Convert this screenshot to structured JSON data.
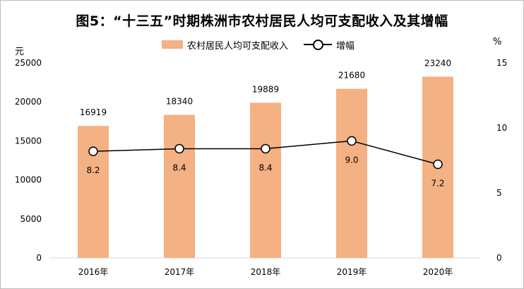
{
  "title": "图5：“十三五”时期株洲市农村居民人均可支配收入及其增幅",
  "legend": {
    "bar_label": "农村居民人均可支配收入",
    "line_label": "增幅"
  },
  "colors": {
    "bar": "#F4B183",
    "line": "#000000",
    "marker_fill": "#FFFFFF",
    "axis": "#D9D9D9"
  },
  "chart_data": {
    "type": "bar",
    "title": "图5：“十三五”时期株洲市农村居民人均可支配收入及其增幅",
    "categories": [
      "2016年",
      "2017年",
      "2018年",
      "2019年",
      "2020年"
    ],
    "series": [
      {
        "name": "农村居民人均可支配收入",
        "type": "bar",
        "axis": "left",
        "values": [
          16919,
          18340,
          19889,
          21680,
          23240
        ],
        "labels": [
          "16919",
          "18340",
          "19889",
          "21680",
          "23240"
        ]
      },
      {
        "name": "增幅",
        "type": "line",
        "axis": "right",
        "values": [
          8.2,
          8.4,
          8.4,
          9.0,
          7.2
        ],
        "labels": [
          "8.2",
          "8.4",
          "8.4",
          "9.0",
          "7.2"
        ]
      }
    ],
    "ylabel": "元",
    "y2label": "%",
    "ylim": [
      0,
      25000
    ],
    "y2lim": [
      0,
      15
    ],
    "yticks": [
      0,
      5000,
      10000,
      15000,
      20000,
      25000
    ],
    "y2ticks": [
      0,
      5,
      10,
      15
    ],
    "grid": false,
    "legend_position": "top"
  }
}
